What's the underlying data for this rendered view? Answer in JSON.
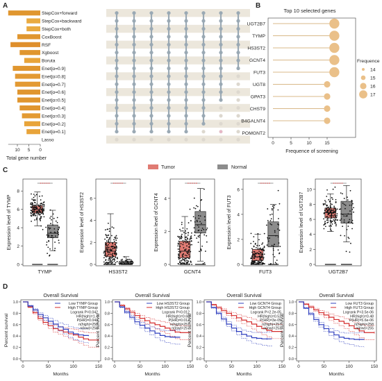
{
  "panels": {
    "a": "A",
    "b": "B",
    "c": "C",
    "d": "D"
  },
  "chart_data": [
    {
      "panel": "A",
      "type": "bar",
      "orientation": "horizontal",
      "categories": [
        "StepCox+forward",
        "StepCox+backward",
        "StepCox+both",
        "CoxBoost",
        "RSF",
        "Xgboost",
        "Boruta",
        "Enet[α=0.9]",
        "Enet[α=0.8]",
        "Enet[α=0.7]",
        "Enet[α=0.6]",
        "Enet[α=0.5]",
        "Enet[α=0.4]",
        "Enet[α=0.3]",
        "Enet[α=0.2]",
        "Enet[α=0.1]",
        "Lasso"
      ],
      "values": [
        14,
        6,
        6,
        10,
        13,
        9,
        7,
        12,
        11,
        11,
        10,
        10,
        9,
        8,
        7,
        6,
        0
      ],
      "bar_colors": [
        "#e0962f",
        "#e9aa40",
        "#e9aa40",
        "#e0962f",
        "#df8f2c",
        "#e0962f",
        "#e8a43a",
        "#e0962f",
        "#e39a33",
        "#e39a33",
        "#e0962f",
        "#e0962f",
        "#e0962f",
        "#e39a33",
        "#e8a43a",
        "#e8a43a",
        "#ffffff"
      ],
      "xlabel": "Total gene number",
      "xticks": [
        "10",
        "5",
        "0"
      ],
      "xlim": [
        0,
        14
      ]
    },
    {
      "panel": "B",
      "type": "scatter",
      "title": "Top 10 selected genes",
      "categories": [
        "UGT2B7",
        "TYMP",
        "HS3ST2",
        "GCNT4",
        "FUT3",
        "UGT8",
        "GPAT3",
        "CHST9",
        "B4GALNT4",
        "POMGNT2"
      ],
      "values": [
        17,
        17,
        17,
        17,
        17,
        15,
        15,
        15,
        15,
        0
      ],
      "xlabel": "Frequence of screening",
      "xticks": [
        "0",
        "5",
        "10",
        "15"
      ],
      "xlim": [
        0,
        20
      ],
      "legend_title": "Frequence",
      "legend_values": [
        "14",
        "15",
        "16",
        "17"
      ],
      "point_color": "#eac089",
      "line_color": "#d8b888"
    },
    {
      "panel": "C",
      "type": "box",
      "legend": [
        "Tumor",
        "Normal"
      ],
      "colors": {
        "Tumor": "#e07b73",
        "Normal": "#8c8c8c"
      },
      "plots": [
        {
          "gene": "TYMP",
          "ylabel": "Expression level of TYMP",
          "yticks": [
            "0",
            "2",
            "4",
            "6",
            "8"
          ],
          "ymax": 9,
          "tumor": {
            "q1": 5.6,
            "med": 6.0,
            "q3": 6.4,
            "lo": 4.2,
            "hi": 7.9
          },
          "normal": {
            "q1": 2.9,
            "med": 3.4,
            "q3": 4.3,
            "lo": 1.5,
            "hi": 5.9
          }
        },
        {
          "gene": "HS3ST2",
          "ylabel": "Expression level of HS3ST2",
          "yticks": [
            "0",
            "2",
            "4",
            "6"
          ],
          "ymax": 7.5,
          "tumor": {
            "q1": 0.7,
            "med": 1.2,
            "q3": 2.0,
            "lo": 0,
            "hi": 4.6
          },
          "normal": {
            "q1": 0.05,
            "med": 0.15,
            "q3": 0.3,
            "lo": 0,
            "hi": 0.7
          }
        },
        {
          "gene": "GCNT4",
          "ylabel": "Expression level of GCNT4",
          "yticks": [
            "0",
            "2",
            "4"
          ],
          "ymax": 5,
          "tumor": {
            "q1": 0.4,
            "med": 0.8,
            "q3": 1.4,
            "lo": 0,
            "hi": 2.9
          },
          "normal": {
            "q1": 1.9,
            "med": 2.4,
            "q3": 3.2,
            "lo": 0.2,
            "hi": 4.6
          }
        },
        {
          "gene": "FUT3",
          "ylabel": "Expression level of FUT3",
          "yticks": [
            "0",
            "2",
            "4",
            "6"
          ],
          "ymax": 6.6,
          "tumor": {
            "q1": 0.3,
            "med": 0.6,
            "q3": 1.2,
            "lo": 0,
            "hi": 2.4
          },
          "normal": {
            "q1": 1.4,
            "med": 2.3,
            "q3": 3.4,
            "lo": 0,
            "hi": 4.8
          }
        },
        {
          "gene": "UGT2B7",
          "ylabel": "Expression level of UGT2B7",
          "yticks": [
            "0",
            "2",
            "4",
            "6",
            "8",
            "10"
          ],
          "ymax": 11,
          "tumor": {
            "q1": 6.2,
            "med": 6.9,
            "q3": 7.5,
            "lo": 4.4,
            "hi": 9.4
          },
          "normal": {
            "q1": 5.5,
            "med": 6.7,
            "q3": 8.4,
            "lo": 3.0,
            "hi": 10.5
          }
        }
      ]
    },
    {
      "panel": "D",
      "type": "line",
      "xlabel": "Months",
      "ylabel": "Percent survival",
      "xticks": [
        "0",
        "50",
        "100",
        "150"
      ],
      "yticks": [
        "0.0",
        "0.2",
        "0.4",
        "0.6",
        "0.8",
        "1.0"
      ],
      "xlim": [
        0,
        150
      ],
      "ylim": [
        0,
        1
      ],
      "colors": {
        "low": "#2f3fbe",
        "high": "#d42a2a"
      },
      "plots": [
        {
          "title": "Overall Survival",
          "low_label": "Low TYMP Group",
          "high_label": "High TYMP Group",
          "stats": [
            "Logrank P=0.042",
            "HR(high)=1.4",
            "P(HR)=0.043",
            "n(high)=258",
            "n(low)=258"
          ],
          "low": [
            [
              0,
              1
            ],
            [
              10,
              0.93
            ],
            [
              20,
              0.86
            ],
            [
              30,
              0.78
            ],
            [
              40,
              0.72
            ],
            [
              50,
              0.66
            ],
            [
              60,
              0.61
            ],
            [
              70,
              0.56
            ],
            [
              80,
              0.52
            ],
            [
              90,
              0.47
            ],
            [
              100,
              0.44
            ],
            [
              110,
              0.42
            ],
            [
              120,
              0.41
            ],
            [
              130,
              0.4
            ]
          ],
          "high": [
            [
              0,
              1
            ],
            [
              10,
              0.91
            ],
            [
              20,
              0.81
            ],
            [
              30,
              0.71
            ],
            [
              40,
              0.64
            ],
            [
              50,
              0.58
            ],
            [
              60,
              0.53
            ],
            [
              70,
              0.5
            ],
            [
              80,
              0.47
            ],
            [
              90,
              0.44
            ],
            [
              100,
              0.42
            ],
            [
              110,
              0.38
            ],
            [
              120,
              0.35
            ],
            [
              130,
              0.33
            ],
            [
              150,
              0.33
            ]
          ]
        },
        {
          "title": "Overall Survival",
          "low_label": "Low HS3ST2 Group",
          "high_label": "High HS3ST2 Group",
          "stats": [
            "Logrank P=0.012",
            "HR(high)=0.68",
            "P(HR)=0.012",
            "n(high)=257",
            "n(low)=257"
          ],
          "low": [
            [
              0,
              1
            ],
            [
              10,
              0.91
            ],
            [
              20,
              0.82
            ],
            [
              30,
              0.73
            ],
            [
              40,
              0.65
            ],
            [
              50,
              0.59
            ],
            [
              60,
              0.54
            ],
            [
              70,
              0.49
            ],
            [
              80,
              0.45
            ],
            [
              90,
              0.41
            ],
            [
              100,
              0.39
            ],
            [
              110,
              0.38
            ],
            [
              120,
              0.38
            ],
            [
              130,
              0.38
            ]
          ],
          "high": [
            [
              0,
              1
            ],
            [
              10,
              0.94
            ],
            [
              20,
              0.88
            ],
            [
              30,
              0.82
            ],
            [
              40,
              0.76
            ],
            [
              50,
              0.71
            ],
            [
              60,
              0.67
            ],
            [
              70,
              0.63
            ],
            [
              80,
              0.6
            ],
            [
              90,
              0.57
            ],
            [
              100,
              0.54
            ],
            [
              110,
              0.5
            ],
            [
              120,
              0.47
            ],
            [
              130,
              0.46
            ],
            [
              150,
              0.46
            ]
          ]
        },
        {
          "title": "Overall Survival",
          "low_label": "Low GCNT4 Group",
          "high_label": "High GCNT4 Group",
          "stats": [
            "Logrank P=2.2e-05",
            "HR(high)=0.52",
            "P(HR)=3e-05",
            "n(high)=257",
            "n(low)=253"
          ],
          "low": [
            [
              0,
              1
            ],
            [
              10,
              0.9
            ],
            [
              20,
              0.8
            ],
            [
              30,
              0.7
            ],
            [
              40,
              0.61
            ],
            [
              50,
              0.54
            ],
            [
              60,
              0.48
            ],
            [
              70,
              0.43
            ],
            [
              80,
              0.4
            ],
            [
              90,
              0.37
            ],
            [
              100,
              0.36
            ],
            [
              110,
              0.35
            ],
            [
              120,
              0.35
            ],
            [
              130,
              0.35
            ]
          ],
          "high": [
            [
              0,
              1
            ],
            [
              10,
              0.95
            ],
            [
              20,
              0.9
            ],
            [
              30,
              0.85
            ],
            [
              40,
              0.8
            ],
            [
              50,
              0.76
            ],
            [
              60,
              0.72
            ],
            [
              70,
              0.68
            ],
            [
              80,
              0.65
            ],
            [
              90,
              0.61
            ],
            [
              100,
              0.57
            ],
            [
              110,
              0.53
            ],
            [
              120,
              0.5
            ],
            [
              130,
              0.48
            ],
            [
              150,
              0.48
            ]
          ]
        },
        {
          "title": "Overall Survival",
          "low_label": "Low FUT3 Group",
          "high_label": "High FUT3 Group",
          "stats": [
            "Logrank P=3.5e-06",
            "HR(high)=0.48",
            "P(HR)=5.6e-06",
            "n(high)=258",
            "n(low)=255"
          ],
          "low": [
            [
              0,
              1
            ],
            [
              10,
              0.89
            ],
            [
              20,
              0.79
            ],
            [
              30,
              0.69
            ],
            [
              40,
              0.6
            ],
            [
              50,
              0.53
            ],
            [
              60,
              0.47
            ],
            [
              70,
              0.42
            ],
            [
              80,
              0.38
            ],
            [
              90,
              0.36
            ],
            [
              100,
              0.35
            ],
            [
              110,
              0.34
            ],
            [
              120,
              0.34
            ],
            [
              130,
              0.34
            ]
          ],
          "high": [
            [
              0,
              1
            ],
            [
              10,
              0.96
            ],
            [
              20,
              0.91
            ],
            [
              30,
              0.86
            ],
            [
              40,
              0.81
            ],
            [
              50,
              0.77
            ],
            [
              60,
              0.73
            ],
            [
              70,
              0.69
            ],
            [
              80,
              0.66
            ],
            [
              90,
              0.62
            ],
            [
              100,
              0.58
            ],
            [
              110,
              0.53
            ],
            [
              120,
              0.49
            ],
            [
              130,
              0.46
            ],
            [
              150,
              0.46
            ]
          ]
        }
      ]
    }
  ]
}
